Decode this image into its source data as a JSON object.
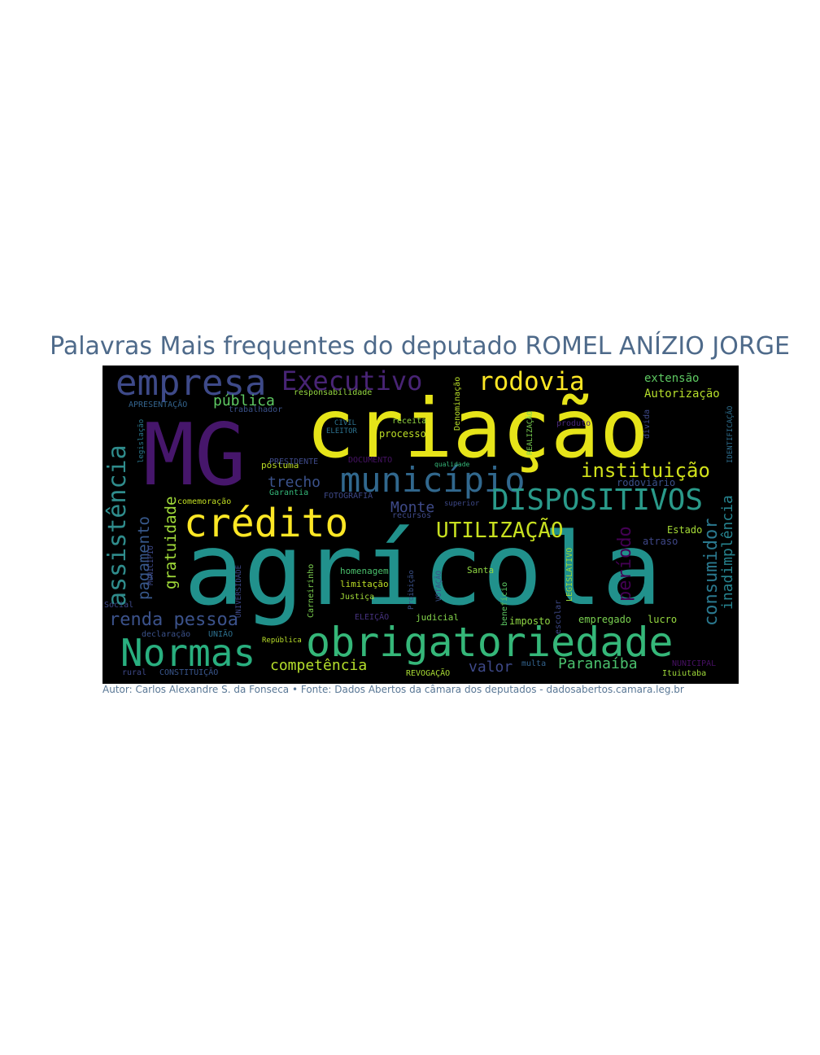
{
  "title": "Palavras Mais frequentes do deputado ROMEL ANÍZIO JORGE",
  "caption": "Autor: Carlos Alexandre S. da Fonseca • Fonte: Dados Abertos da câmara dos deputados - dadosabertos.camara.leg.br",
  "colors": {
    "background": "#000000",
    "title": "#4e6a8a",
    "caption": "#5a7896"
  },
  "words": [
    {
      "text": "agrícola",
      "color": "#21918c"
    },
    {
      "text": "criação",
      "color": "#e6e419"
    },
    {
      "text": "MG",
      "color": "#46166b"
    },
    {
      "text": "obrigatoriedade",
      "color": "#35b779"
    },
    {
      "text": "crédito",
      "color": "#fde725"
    },
    {
      "text": "município",
      "color": "#31688e"
    },
    {
      "text": "empresa",
      "color": "#3e4a89"
    },
    {
      "text": "Normas",
      "color": "#29af7f"
    },
    {
      "text": "DISPOSITIVOS",
      "color": "#2a9a8a"
    },
    {
      "text": "Executivo",
      "color": "#482475"
    },
    {
      "text": "rodovia",
      "color": "#fde725"
    },
    {
      "text": "instituição",
      "color": "#d2e21b"
    },
    {
      "text": "assistência",
      "color": "#2f8c8c"
    },
    {
      "text": "UTILIZAÇÃO",
      "color": "#c8e020"
    },
    {
      "text": "consumidor",
      "color": "#2a788e"
    },
    {
      "text": "inadimplência",
      "color": "#26828e"
    },
    {
      "text": "renda pessoa",
      "color": "#3b528b"
    },
    {
      "text": "período",
      "color": "#440154"
    },
    {
      "text": "pagamento",
      "color": "#38598c"
    },
    {
      "text": "gratuidade",
      "color": "#a0da39"
    },
    {
      "text": "competência",
      "color": "#b5de2b"
    },
    {
      "text": "Paranaíba",
      "color": "#4ac16d"
    },
    {
      "text": "pública",
      "color": "#5ec962"
    },
    {
      "text": "trecho",
      "color": "#3b528b"
    },
    {
      "text": "Monte",
      "color": "#3e4a89"
    },
    {
      "text": "valor",
      "color": "#3e4989"
    },
    {
      "text": "extensão",
      "color": "#5ec962"
    },
    {
      "text": "Autorização",
      "color": "#b5de2b"
    },
    {
      "text": "rodoviário",
      "color": "#3b528b"
    },
    {
      "text": "Estado",
      "color": "#a5db36"
    },
    {
      "text": "atraso",
      "color": "#3f4788"
    },
    {
      "text": "empregado",
      "color": "#7ad151"
    },
    {
      "text": "lucro",
      "color": "#95d840"
    },
    {
      "text": "imposto",
      "color": "#8fd744"
    },
    {
      "text": "Santa",
      "color": "#90d743"
    },
    {
      "text": "homenagem",
      "color": "#4ac16d"
    },
    {
      "text": "limitação",
      "color": "#bddf26"
    },
    {
      "text": "Justiça",
      "color": "#a2da37"
    },
    {
      "text": "judicial",
      "color": "#84d44b"
    },
    {
      "text": "ELEIÇÃO",
      "color": "#46327e"
    },
    {
      "text": "póstuma",
      "color": "#bddf26"
    },
    {
      "text": "Garantia",
      "color": "#35b779"
    },
    {
      "text": "FOTOGRAFIA",
      "color": "#3e4989"
    },
    {
      "text": "PRESIDENTE",
      "color": "#3e4a89"
    },
    {
      "text": "comemoração",
      "color": "#c2df23"
    },
    {
      "text": "processo",
      "color": "#bddf26"
    },
    {
      "text": "receita",
      "color": "#93d741"
    },
    {
      "text": "CIVIL",
      "color": "#2c728e"
    },
    {
      "text": "ELEITOR",
      "color": "#2c728e"
    },
    {
      "text": "responsabilidade",
      "color": "#95d840"
    },
    {
      "text": "trabalhador",
      "color": "#3b528b"
    },
    {
      "text": "APRESENTAÇÃO",
      "color": "#33638d"
    },
    {
      "text": "declaração",
      "color": "#3b528b"
    },
    {
      "text": "UNIÃO",
      "color": "#2d708e"
    },
    {
      "text": "CONSTITUIÇÃO",
      "color": "#39568c"
    },
    {
      "text": "rural",
      "color": "#3e4989"
    },
    {
      "text": "Social",
      "color": "#3e4989"
    },
    {
      "text": "REVOGAÇÃO",
      "color": "#a8db34"
    },
    {
      "text": "multa",
      "color": "#33638d"
    },
    {
      "text": "Ituiutaba",
      "color": "#9fda3a"
    },
    {
      "text": "NUNICIPAL",
      "color": "#471063"
    },
    {
      "text": "escolar",
      "color": "#3e4989"
    },
    {
      "text": "benefício",
      "color": "#5cc863"
    },
    {
      "text": "LEGISLATIVO",
      "color": "#9bd93c"
    },
    {
      "text": "Carneirinho",
      "color": "#7cd250"
    },
    {
      "text": "UNIVERSIDADE",
      "color": "#3e4989"
    },
    {
      "text": "produto",
      "color": "#482878"
    },
    {
      "text": "dívida",
      "color": "#3e4989"
    },
    {
      "text": "IDENTIFICAÇÃO",
      "color": "#2e6e8e"
    },
    {
      "text": "Denominação",
      "color": "#b8de29"
    },
    {
      "text": "REALIZAÇÃO",
      "color": "#7ad151"
    },
    {
      "text": "DOCUMENTO",
      "color": "#471365"
    },
    {
      "text": "recursos",
      "color": "#3e4989"
    },
    {
      "text": "VOTAÇÃO",
      "color": "#3b528b"
    },
    {
      "text": "Proibição",
      "color": "#3b528b"
    },
    {
      "text": "República",
      "color": "#b8de29"
    },
    {
      "text": "MUNICÍPIO",
      "color": "#3e4989"
    },
    {
      "text": "legislação",
      "color": "#2a788e"
    },
    {
      "text": "superior",
      "color": "#3e4989"
    },
    {
      "text": "qualidade",
      "color": "#35b779"
    }
  ]
}
